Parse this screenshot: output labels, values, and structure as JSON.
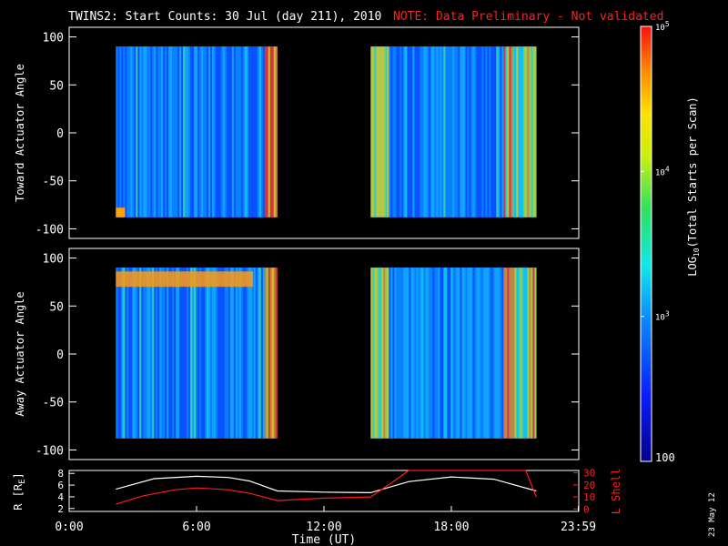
{
  "chart_data": [
    {
      "type": "heatmap",
      "panel": "toward",
      "title": "TWINS2: Start Counts: 30 Jul (day 211), 2010",
      "note": "NOTE: Data Preliminary - Not validated",
      "ylabel": "Toward Actuator Angle",
      "xlim_hours": [
        0,
        24
      ],
      "ylim": [
        -110,
        110
      ],
      "yticks": [
        100,
        50,
        0,
        -50,
        -100
      ],
      "data_blocks": [
        {
          "start": 2.2,
          "end": 9.8,
          "angle_min": -88,
          "angle_max": 90
        },
        {
          "start": 14.2,
          "end": 22.0,
          "angle_min": -88,
          "angle_max": 90
        }
      ]
    },
    {
      "type": "heatmap",
      "panel": "away",
      "ylabel": "Away Actuator Angle",
      "xlim_hours": [
        0,
        24
      ],
      "ylim": [
        -110,
        110
      ],
      "yticks": [
        100,
        50,
        0,
        -50,
        -100
      ],
      "data_blocks": [
        {
          "start": 2.2,
          "end": 9.8,
          "angle_min": -88,
          "angle_max": 90
        },
        {
          "start": 14.2,
          "end": 22.0,
          "angle_min": -88,
          "angle_max": 90
        }
      ]
    },
    {
      "type": "line",
      "panel": "orbit",
      "xlabel": "Time (UT)",
      "xticks": [
        "0:00",
        "6:00",
        "12:00",
        "18:00",
        "23:59"
      ],
      "y_left": {
        "label": "R [RE]",
        "ticks": [
          8,
          6,
          4,
          2
        ],
        "lim": [
          1.5,
          8.5
        ]
      },
      "y_right": {
        "label": "L Shell",
        "ticks": [
          30,
          20,
          10,
          0
        ],
        "lim": [
          -2,
          32
        ]
      },
      "series": [
        {
          "name": "R",
          "axis": "left",
          "color": "#ffffff",
          "x": [
            2.2,
            4,
            6,
            7.5,
            8.5,
            9.8,
            12,
            14.2,
            16,
            18,
            20,
            22
          ],
          "y": [
            5.3,
            7.1,
            7.5,
            7.3,
            6.7,
            5.0,
            4.8,
            4.7,
            6.6,
            7.4,
            7.0,
            5.0
          ]
        },
        {
          "name": "L Shell",
          "axis": "right",
          "color": "#ff1a1a",
          "x": [
            2.2,
            3.5,
            5,
            6,
            7.5,
            8.5,
            9.8,
            12,
            14.2,
            15.2,
            16.0,
            21.5,
            22
          ],
          "y": [
            4,
            11,
            16,
            17.5,
            16,
            13,
            7,
            9,
            10,
            22,
            33,
            33,
            10
          ]
        }
      ]
    },
    {
      "type": "colorbar",
      "label": "LOG",
      "label_sub": "10",
      "label_rest": "(Total Starts per Scan)",
      "range_log": [
        2,
        5
      ],
      "tick_top": "5",
      "tick_mid": "4",
      "tick_low": "3",
      "tick_bottom": "100",
      "tick_prefix": "10"
    }
  ],
  "footer": {
    "date_stamp": "23 May 12",
    "r_unit": "E"
  }
}
